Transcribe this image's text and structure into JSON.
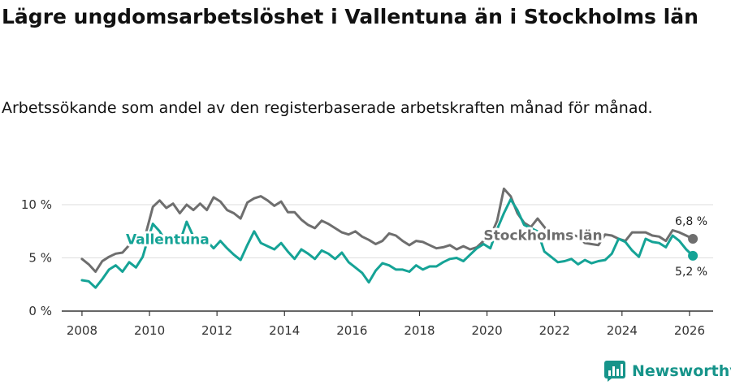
{
  "title": "Lägre ungdomsarbetslöshet i Vallentuna än i Stockholms län",
  "subtitle": "Arbetssökande som andel av den registerbaserade arbetskraften månad för månad.",
  "brand": {
    "name": "Newsworthy",
    "icon": "newsworthy-logo-icon"
  },
  "colors": {
    "stockholm": "#6e6e6e",
    "vallentuna": "#15a396",
    "grid": "#dddddd",
    "axis": "#333333",
    "brand": "#16948a"
  },
  "chart_data": {
    "type": "line",
    "title": "Lägre ungdomsarbetslöshet i Vallentuna än i Stockholms län",
    "xlabel": "",
    "ylabel": "",
    "xlim": [
      2007.4,
      2026.7
    ],
    "ylim": [
      0,
      10
    ],
    "xticks": [
      {
        "value": 2008,
        "label": "2008"
      },
      {
        "value": 2010,
        "label": "2010"
      },
      {
        "value": 2012,
        "label": "2012"
      },
      {
        "value": 2014,
        "label": "2014"
      },
      {
        "value": 2016,
        "label": "2016"
      },
      {
        "value": 2018,
        "label": "2018"
      },
      {
        "value": 2020,
        "label": "2020"
      },
      {
        "value": 2022,
        "label": "2022"
      },
      {
        "value": 2024,
        "label": "2024"
      },
      {
        "value": 2026,
        "label": "2026"
      }
    ],
    "yticks": [
      {
        "value": 0,
        "label": "0 %"
      },
      {
        "value": 5,
        "label": "5 %"
      },
      {
        "value": 10,
        "label": "10 %"
      }
    ],
    "grid": true,
    "series": [
      {
        "name": "Stockholms län",
        "label": "Stockholms län",
        "color": "#6e6e6e",
        "end_label": "6,8 %",
        "end_value": 6.8,
        "label_anchor": [
          2019.9,
          6.7
        ],
        "points": [
          [
            2008.0,
            4.9
          ],
          [
            2008.2,
            4.4
          ],
          [
            2008.4,
            3.7
          ],
          [
            2008.6,
            4.7
          ],
          [
            2008.8,
            5.1
          ],
          [
            2009.0,
            5.4
          ],
          [
            2009.2,
            5.5
          ],
          [
            2009.4,
            6.2
          ],
          [
            2009.6,
            6.8
          ],
          [
            2009.8,
            6.8
          ],
          [
            2009.9,
            7.4
          ],
          [
            2010.1,
            9.8
          ],
          [
            2010.3,
            10.4
          ],
          [
            2010.5,
            9.7
          ],
          [
            2010.7,
            10.1
          ],
          [
            2010.9,
            9.2
          ],
          [
            2011.1,
            10.0
          ],
          [
            2011.3,
            9.5
          ],
          [
            2011.5,
            10.1
          ],
          [
            2011.7,
            9.5
          ],
          [
            2011.9,
            10.7
          ],
          [
            2012.1,
            10.3
          ],
          [
            2012.3,
            9.5
          ],
          [
            2012.5,
            9.2
          ],
          [
            2012.7,
            8.7
          ],
          [
            2012.9,
            10.2
          ],
          [
            2013.1,
            10.6
          ],
          [
            2013.3,
            10.8
          ],
          [
            2013.5,
            10.4
          ],
          [
            2013.7,
            9.9
          ],
          [
            2013.9,
            10.3
          ],
          [
            2014.1,
            9.3
          ],
          [
            2014.3,
            9.3
          ],
          [
            2014.5,
            8.6
          ],
          [
            2014.7,
            8.1
          ],
          [
            2014.9,
            7.8
          ],
          [
            2015.1,
            8.5
          ],
          [
            2015.3,
            8.2
          ],
          [
            2015.5,
            7.8
          ],
          [
            2015.7,
            7.4
          ],
          [
            2015.9,
            7.2
          ],
          [
            2016.1,
            7.5
          ],
          [
            2016.3,
            7.0
          ],
          [
            2016.5,
            6.7
          ],
          [
            2016.7,
            6.3
          ],
          [
            2016.9,
            6.6
          ],
          [
            2017.1,
            7.3
          ],
          [
            2017.3,
            7.1
          ],
          [
            2017.5,
            6.6
          ],
          [
            2017.7,
            6.2
          ],
          [
            2017.9,
            6.6
          ],
          [
            2018.1,
            6.5
          ],
          [
            2018.3,
            6.2
          ],
          [
            2018.5,
            5.9
          ],
          [
            2018.7,
            6.0
          ],
          [
            2018.9,
            6.2
          ],
          [
            2019.1,
            5.8
          ],
          [
            2019.3,
            6.1
          ],
          [
            2019.5,
            5.8
          ],
          [
            2019.7,
            6.0
          ],
          [
            2019.9,
            6.6
          ],
          [
            2020.1,
            7.0
          ],
          [
            2020.3,
            8.5
          ],
          [
            2020.5,
            11.5
          ],
          [
            2020.7,
            10.8
          ],
          [
            2020.9,
            9.2
          ],
          [
            2021.1,
            8.3
          ],
          [
            2021.3,
            7.9
          ],
          [
            2021.5,
            8.7
          ],
          [
            2021.7,
            7.9
          ],
          [
            2021.9,
            7.2
          ],
          [
            2022.1,
            6.6
          ],
          [
            2022.3,
            6.9
          ],
          [
            2022.5,
            7.2
          ],
          [
            2022.7,
            7.0
          ],
          [
            2022.9,
            6.4
          ],
          [
            2023.1,
            6.3
          ],
          [
            2023.3,
            6.2
          ],
          [
            2023.5,
            7.2
          ],
          [
            2023.7,
            7.1
          ],
          [
            2023.9,
            6.8
          ],
          [
            2024.1,
            6.6
          ],
          [
            2024.3,
            7.4
          ],
          [
            2024.5,
            7.4
          ],
          [
            2024.7,
            7.4
          ],
          [
            2024.9,
            7.1
          ],
          [
            2025.1,
            7.0
          ],
          [
            2025.3,
            6.6
          ],
          [
            2025.5,
            7.6
          ],
          [
            2025.7,
            7.4
          ],
          [
            2025.9,
            7.1
          ],
          [
            2026.1,
            6.8
          ]
        ]
      },
      {
        "name": "Vallentuna",
        "label": "Vallentuna",
        "color": "#15a396",
        "end_label": "5,2 %",
        "end_value": 5.2,
        "label_anchor": [
          2009.3,
          6.3
        ],
        "points": [
          [
            2008.0,
            2.9
          ],
          [
            2008.2,
            2.8
          ],
          [
            2008.4,
            2.2
          ],
          [
            2008.6,
            3.0
          ],
          [
            2008.8,
            3.9
          ],
          [
            2009.0,
            4.3
          ],
          [
            2009.2,
            3.7
          ],
          [
            2009.4,
            4.6
          ],
          [
            2009.6,
            4.1
          ],
          [
            2009.8,
            5.1
          ],
          [
            2009.9,
            6.2
          ],
          [
            2010.1,
            8.2
          ],
          [
            2010.3,
            7.5
          ],
          [
            2010.5,
            6.5
          ],
          [
            2010.7,
            6.9
          ],
          [
            2010.9,
            6.5
          ],
          [
            2011.1,
            8.4
          ],
          [
            2011.3,
            7.0
          ],
          [
            2011.5,
            6.5
          ],
          [
            2011.7,
            6.6
          ],
          [
            2011.9,
            5.9
          ],
          [
            2012.1,
            6.6
          ],
          [
            2012.3,
            5.9
          ],
          [
            2012.5,
            5.3
          ],
          [
            2012.7,
            4.8
          ],
          [
            2012.9,
            6.2
          ],
          [
            2013.1,
            7.5
          ],
          [
            2013.3,
            6.4
          ],
          [
            2013.5,
            6.1
          ],
          [
            2013.7,
            5.8
          ],
          [
            2013.9,
            6.4
          ],
          [
            2014.1,
            5.6
          ],
          [
            2014.3,
            4.9
          ],
          [
            2014.5,
            5.8
          ],
          [
            2014.7,
            5.4
          ],
          [
            2014.9,
            4.9
          ],
          [
            2015.1,
            5.7
          ],
          [
            2015.3,
            5.4
          ],
          [
            2015.5,
            4.9
          ],
          [
            2015.7,
            5.5
          ],
          [
            2015.9,
            4.6
          ],
          [
            2016.1,
            4.1
          ],
          [
            2016.3,
            3.6
          ],
          [
            2016.5,
            2.7
          ],
          [
            2016.7,
            3.8
          ],
          [
            2016.9,
            4.5
          ],
          [
            2017.1,
            4.3
          ],
          [
            2017.3,
            3.9
          ],
          [
            2017.5,
            3.9
          ],
          [
            2017.7,
            3.7
          ],
          [
            2017.9,
            4.3
          ],
          [
            2018.1,
            3.9
          ],
          [
            2018.3,
            4.2
          ],
          [
            2018.5,
            4.2
          ],
          [
            2018.7,
            4.6
          ],
          [
            2018.9,
            4.9
          ],
          [
            2019.1,
            5.0
          ],
          [
            2019.3,
            4.7
          ],
          [
            2019.5,
            5.3
          ],
          [
            2019.7,
            5.9
          ],
          [
            2019.9,
            6.3
          ],
          [
            2020.1,
            5.9
          ],
          [
            2020.3,
            7.7
          ],
          [
            2020.5,
            9.2
          ],
          [
            2020.7,
            10.5
          ],
          [
            2020.9,
            9.5
          ],
          [
            2021.1,
            8.1
          ],
          [
            2021.3,
            7.8
          ],
          [
            2021.5,
            7.5
          ],
          [
            2021.7,
            5.6
          ],
          [
            2021.9,
            5.1
          ],
          [
            2022.1,
            4.6
          ],
          [
            2022.3,
            4.7
          ],
          [
            2022.5,
            4.9
          ],
          [
            2022.7,
            4.4
          ],
          [
            2022.9,
            4.8
          ],
          [
            2023.1,
            4.5
          ],
          [
            2023.3,
            4.7
          ],
          [
            2023.5,
            4.8
          ],
          [
            2023.7,
            5.4
          ],
          [
            2023.9,
            6.8
          ],
          [
            2024.1,
            6.5
          ],
          [
            2024.3,
            5.7
          ],
          [
            2024.5,
            5.1
          ],
          [
            2024.7,
            6.8
          ],
          [
            2024.9,
            6.5
          ],
          [
            2025.1,
            6.4
          ],
          [
            2025.3,
            6.0
          ],
          [
            2025.5,
            7.1
          ],
          [
            2025.7,
            6.6
          ],
          [
            2025.9,
            5.8
          ],
          [
            2026.1,
            5.2
          ]
        ]
      }
    ]
  }
}
